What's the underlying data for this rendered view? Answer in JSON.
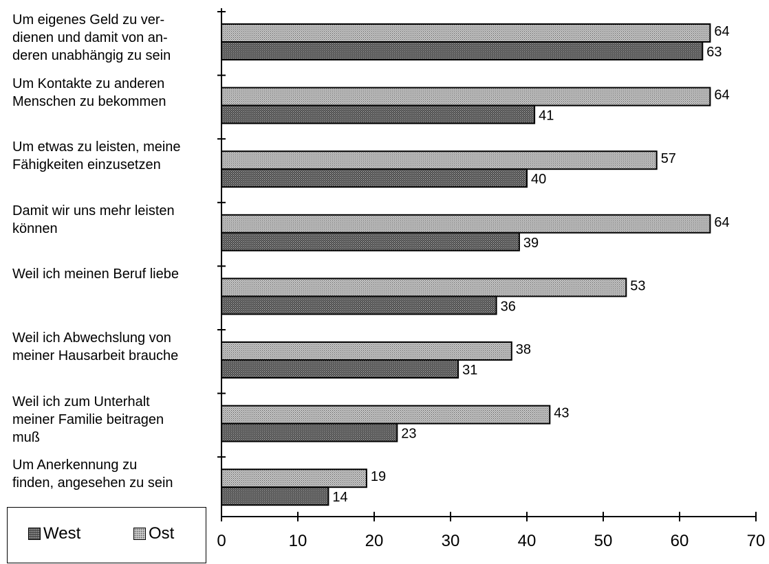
{
  "chart_data": {
    "type": "bar",
    "orientation": "horizontal",
    "categories": [
      [
        "Um eigenes Geld zu ver-",
        "dienen und damit von an-",
        "deren unabhängig zu sein"
      ],
      [
        "Um Kontakte zu anderen",
        "Menschen zu bekommen"
      ],
      [
        "Um etwas zu leisten, meine",
        "Fähigkeiten einzusetzen"
      ],
      [
        "Damit wir uns mehr leisten",
        "können"
      ],
      [
        "Weil ich meinen Beruf liebe"
      ],
      [
        "Weil ich Abwechslung von",
        "meiner Hausarbeit brauche"
      ],
      [
        "Weil ich zum Unterhalt",
        "meiner Familie beitragen",
        "muß"
      ],
      [
        "Um Anerkennung zu",
        "finden, angesehen zu sein"
      ]
    ],
    "series": [
      {
        "name": "Ost",
        "values": [
          64,
          64,
          57,
          64,
          53,
          38,
          43,
          19
        ]
      },
      {
        "name": "West",
        "values": [
          63,
          41,
          40,
          39,
          36,
          31,
          23,
          14
        ]
      }
    ],
    "xlim": [
      0,
      70
    ],
    "xticks": [
      "0",
      "10",
      "20",
      "30",
      "40",
      "50",
      "60",
      "70"
    ],
    "legend": [
      "West",
      "Ost"
    ],
    "legend_position": "bottom-left",
    "grid": false
  },
  "colors": {
    "west": "#4a4a4a",
    "ost": "#c8c8c8",
    "axis": "#000000"
  }
}
